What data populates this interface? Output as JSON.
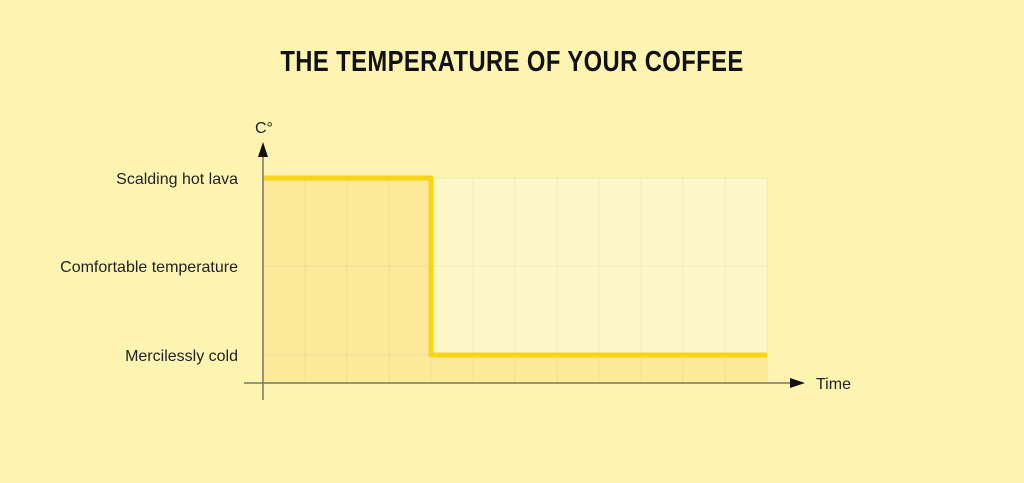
{
  "chart_data": {
    "type": "line",
    "title": "THE TEMPERATURE OF YOUR COFFEE",
    "xlabel": "Time",
    "ylabel": "C°",
    "y_categories": [
      "Mercilessly cold",
      "Comfortable temperature",
      "Scalding hot lava"
    ],
    "series": [
      {
        "x": [
          0,
          4,
          4,
          12
        ],
        "y": [
          "Scalding hot lava",
          "Scalding hot lava",
          "Mercilessly cold",
          "Mercilessly cold"
        ]
      }
    ],
    "xlim": [
      0,
      12
    ],
    "grid": true,
    "colors": {
      "background": "#fdf4b2",
      "line": "#f8d414",
      "fill": "#fde99a",
      "plot_area": "#fef8c8",
      "axis": "#777766"
    }
  }
}
